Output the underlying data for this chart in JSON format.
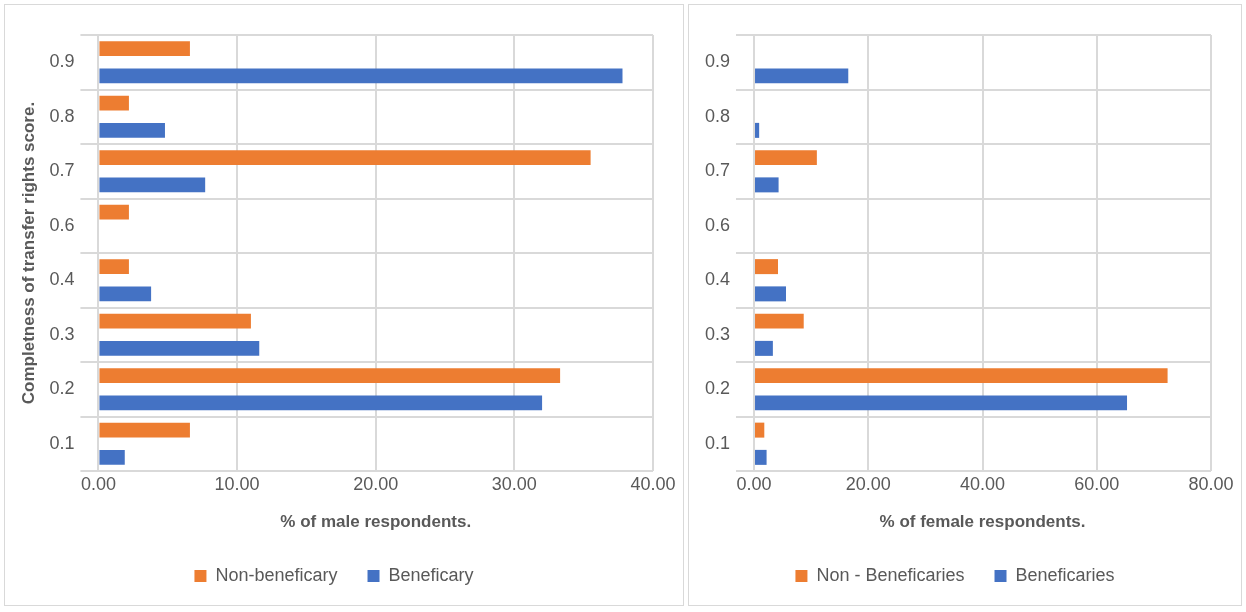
{
  "chart_data": [
    {
      "type": "bar",
      "orientation": "horizontal",
      "xlabel": "% of male respondents.",
      "ylabel": "Completness of transfer rights score.",
      "categories": [
        "0.9",
        "0.8",
        "0.7",
        "0.6",
        "0.4",
        "0.3",
        "0.2",
        "0.1"
      ],
      "series": [
        {
          "name": "Non-beneficary",
          "color": "#ed7d31",
          "values": [
            6.6,
            2.2,
            35.5,
            2.2,
            2.2,
            11.0,
            33.3,
            6.6
          ]
        },
        {
          "name": "Beneficary",
          "color": "#4472c4",
          "values": [
            37.8,
            4.8,
            7.7,
            0,
            3.8,
            11.6,
            32.0,
            1.9
          ]
        }
      ],
      "xlim": [
        0,
        40
      ],
      "xticks": [
        {
          "value": 0,
          "label": "0.00"
        },
        {
          "value": 10,
          "label": "10.00"
        },
        {
          "value": 20,
          "label": "20.00"
        },
        {
          "value": 30,
          "label": "30.00"
        },
        {
          "value": 40,
          "label": "40.00"
        }
      ],
      "grid": true,
      "legend": "bottom"
    },
    {
      "type": "bar",
      "orientation": "horizontal",
      "xlabel": "% of female respondents.",
      "categories": [
        "0.9",
        "0.8",
        "0.7",
        "0.6",
        "0.4",
        "0.3",
        "0.2",
        "0.1"
      ],
      "series": [
        {
          "name": "Non - Beneficaries",
          "color": "#ed7d31",
          "values": [
            0,
            0,
            11.0,
            0,
            4.2,
            8.7,
            72.4,
            1.8
          ]
        },
        {
          "name": "Beneficaries",
          "color": "#4472c4",
          "values": [
            16.5,
            0.9,
            4.3,
            0,
            5.6,
            3.3,
            65.3,
            2.2
          ]
        }
      ],
      "xlim": [
        0,
        80
      ],
      "xticks": [
        {
          "value": 0,
          "label": "0.00"
        },
        {
          "value": 20,
          "label": "20.00"
        },
        {
          "value": 40,
          "label": "40.00"
        },
        {
          "value": 60,
          "label": "60.00"
        },
        {
          "value": 80,
          "label": "80.00"
        }
      ],
      "grid": true,
      "legend": "bottom"
    }
  ]
}
